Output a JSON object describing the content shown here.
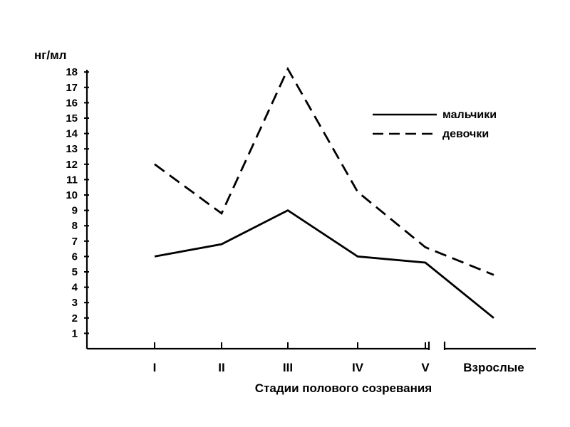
{
  "chart_data": {
    "type": "line",
    "title": "",
    "ylabel": "нг/мл",
    "xlabel": "Стадии полового созревания",
    "ylim": [
      0,
      18
    ],
    "yticks": [
      1,
      2,
      3,
      4,
      5,
      6,
      7,
      8,
      9,
      10,
      11,
      12,
      13,
      14,
      15,
      16,
      17,
      18
    ],
    "categories": [
      "I",
      "II",
      "III",
      "IV",
      "V",
      "Взрослые"
    ],
    "series": [
      {
        "name": "мальчики",
        "style": "solid",
        "color": "#000000",
        "values": [
          6.0,
          6.8,
          9.0,
          6.0,
          5.6,
          2.0
        ]
      },
      {
        "name": "девочки",
        "style": "dashed",
        "color": "#000000",
        "values": [
          12.0,
          8.8,
          18.2,
          10.2,
          6.6,
          4.8
        ]
      }
    ],
    "axis_break_between": [
      "V",
      "Взрослые"
    ],
    "legend_position": "top-right",
    "grid": false
  }
}
